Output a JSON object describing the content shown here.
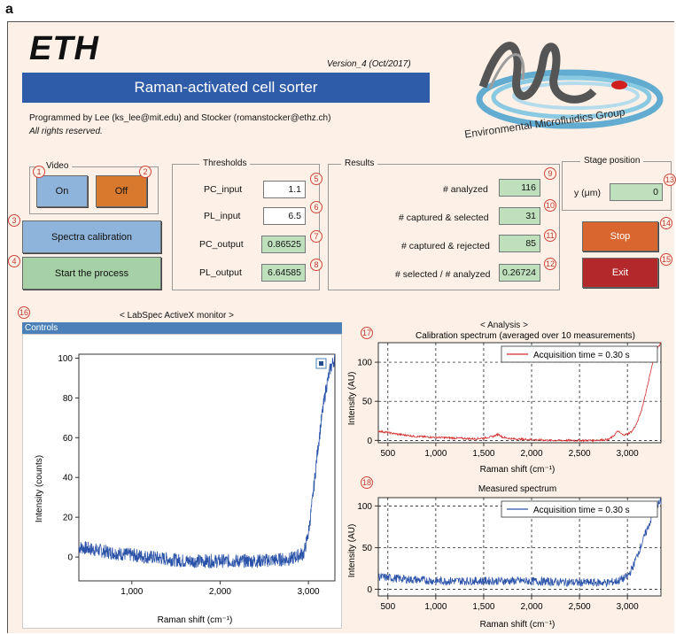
{
  "panel_letter": "a",
  "app": {
    "logo_text": "ETH",
    "version": "Version_4 (Oct/2017)",
    "title": "Raman-activated cell sorter",
    "credits_line1": "Programmed by Lee (ks_lee@mit.edu) and Stocker (romanstocker@ethz.ch)",
    "credits_line2": "All rights reserved.",
    "group_logo_text": "Environmental Microfluidics Group"
  },
  "video": {
    "title": "Video",
    "on_label": "On",
    "off_label": "Off",
    "on_color": "#8fb4dc",
    "off_color": "#d9792e"
  },
  "actions": {
    "spectra_calibration_label": "Spectra calibration",
    "start_process_label": "Start the process"
  },
  "thresholds": {
    "title": "Thresholds",
    "pc_input_label": "PC_input",
    "pc_input_value": "1.1",
    "pl_input_label": "PL_input",
    "pl_input_value": "6.5",
    "pc_output_label": "PC_output",
    "pc_output_value": "0.86525",
    "pl_output_label": "PL_output",
    "pl_output_value": "6.64585"
  },
  "results": {
    "title": "Results",
    "analyzed_label": "# analyzed",
    "analyzed_value": "116",
    "captured_selected_label": "# captured & selected",
    "captured_selected_value": "31",
    "captured_rejected_label": "# captured & rejected",
    "captured_rejected_value": "85",
    "ratio_label": "# selected / # analyzed",
    "ratio_value": "0.26724"
  },
  "stage": {
    "title": "Stage position",
    "y_label": "y (μm)",
    "y_value": "0"
  },
  "controls_right": {
    "stop_label": "Stop",
    "exit_label": "Exit",
    "stop_color": "#d9662e",
    "exit_color": "#b3282b"
  },
  "markers": [
    "1",
    "2",
    "3",
    "4",
    "5",
    "6",
    "7",
    "8",
    "9",
    "10",
    "11",
    "12",
    "13",
    "14",
    "15",
    "16",
    "17",
    "18"
  ],
  "monitor": {
    "title": "< LabSpec ActiveX monitor >",
    "controls_label": "Controls"
  },
  "analysis": {
    "title": "< Analysis >"
  },
  "chart_data": [
    {
      "type": "line",
      "title": "",
      "xlabel": "Raman shift (cm⁻¹)",
      "ylabel": "Intensity (counts)",
      "xlim": [
        400,
        3300
      ],
      "ylim": [
        -12,
        102
      ],
      "x_ticks": [
        "1,000",
        "2,000",
        "3,000"
      ],
      "y_ticks": [
        "0",
        "20",
        "40",
        "60",
        "80",
        "100"
      ],
      "grid": false,
      "color": "#2a52a8",
      "series": [
        {
          "x": [
            400,
            800,
            1200,
            1600,
            2000,
            2400,
            2800,
            2950,
            3000,
            3050,
            3100,
            3150,
            3200,
            3250,
            3300
          ],
          "values": [
            5,
            2,
            0,
            -2,
            -2,
            -2,
            -1,
            2,
            12,
            30,
            52,
            70,
            85,
            95,
            100
          ]
        }
      ]
    },
    {
      "type": "line",
      "title": "Calibration spectrum (averaged over 10 measurements)",
      "xlabel": "Raman shift (cm⁻¹)",
      "ylabel": "Intensity (AU)",
      "xlim": [
        400,
        3350
      ],
      "ylim": [
        -3,
        125
      ],
      "x_ticks": [
        "500",
        "1,000",
        "1,500",
        "2,000",
        "2,500",
        "3,000"
      ],
      "y_ticks": [
        "0",
        "50",
        "100"
      ],
      "grid": true,
      "legend": "top-right",
      "color": "#d42a2a",
      "series": [
        {
          "name": "Acquisition time = 0.30 s",
          "x": [
            400,
            600,
            800,
            1000,
            1200,
            1400,
            1500,
            1600,
            1650,
            1700,
            1800,
            2000,
            2200,
            2400,
            2600,
            2800,
            2850,
            2900,
            2950,
            3000,
            3050,
            3100,
            3150,
            3200,
            3250,
            3300,
            3350
          ],
          "values": [
            12,
            8,
            5,
            4,
            3,
            2,
            3,
            5,
            8,
            4,
            2,
            1,
            0,
            0,
            0,
            1,
            5,
            12,
            7,
            8,
            12,
            22,
            40,
            65,
            92,
            115,
            125
          ]
        }
      ]
    },
    {
      "type": "line",
      "title": "Measured spectrum",
      "xlabel": "Raman shift (cm⁻¹)",
      "ylabel": "Intensity (AU)",
      "xlim": [
        400,
        3350
      ],
      "ylim": [
        -8,
        110
      ],
      "x_ticks": [
        "500",
        "1,000",
        "1,500",
        "2,000",
        "2,500",
        "3,000"
      ],
      "y_ticks": [
        "0",
        "50",
        "100"
      ],
      "grid": true,
      "legend": "top-right",
      "color": "#2a52a8",
      "series": [
        {
          "name": "Acquisition time = 0.30 s",
          "x": [
            400,
            700,
            1000,
            1300,
            1600,
            1900,
            2200,
            2500,
            2800,
            2900,
            3000,
            3050,
            3100,
            3150,
            3200,
            3250,
            3300,
            3350
          ],
          "values": [
            15,
            12,
            10,
            10,
            10,
            10,
            9,
            8,
            8,
            10,
            15,
            25,
            40,
            55,
            70,
            85,
            100,
            105
          ]
        }
      ]
    }
  ]
}
